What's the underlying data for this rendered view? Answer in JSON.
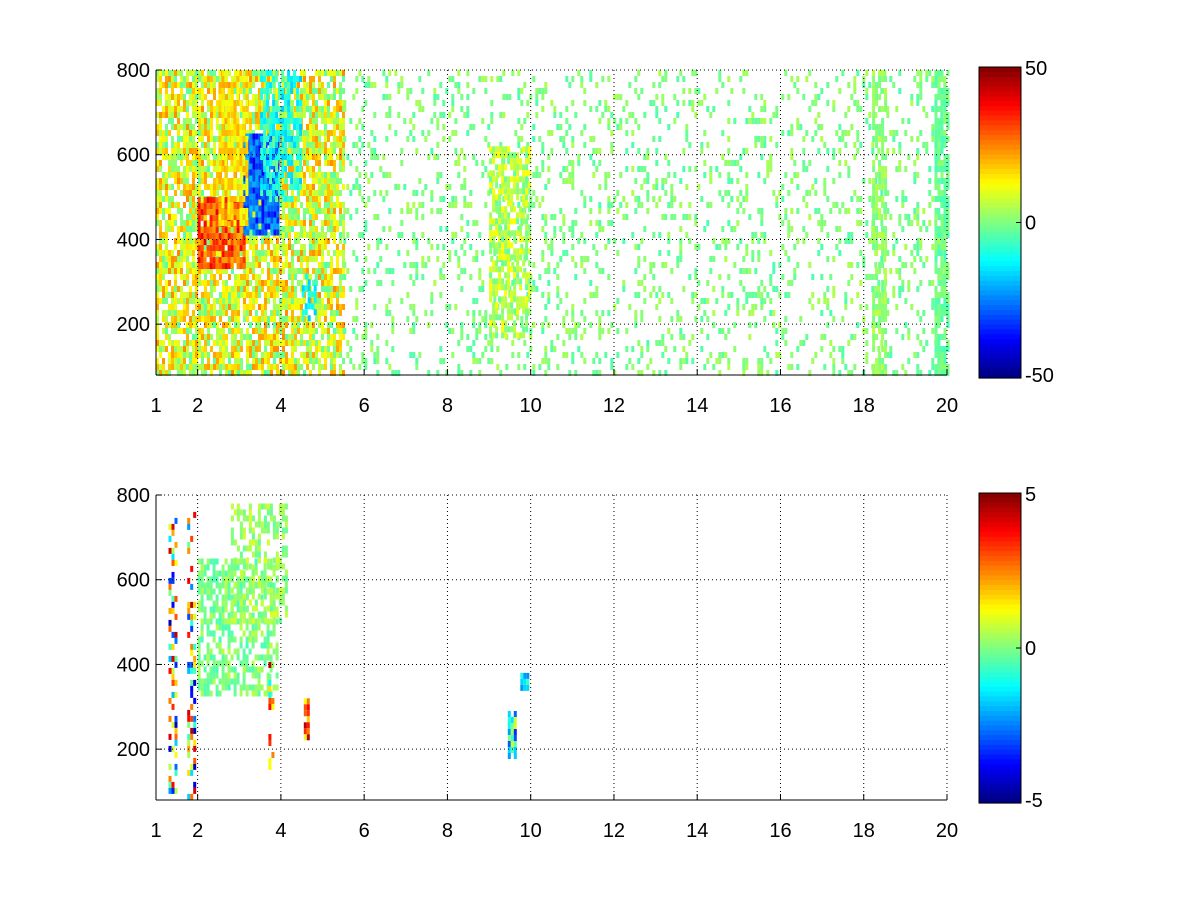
{
  "figure": {
    "background": "#ffffff"
  },
  "chart_data": [
    {
      "type": "heatmap",
      "title": "",
      "xlabel": "",
      "ylabel": "",
      "xlim": [
        1,
        20
      ],
      "ylim": [
        80,
        800
      ],
      "xticks": [
        1,
        2,
        4,
        6,
        8,
        10,
        12,
        14,
        16,
        18,
        20
      ],
      "yticks": [
        200,
        400,
        600,
        800
      ],
      "grid": true,
      "colormap": "jet",
      "clim": [
        -50,
        50
      ],
      "colorbar_ticks": [
        50,
        0,
        -50
      ],
      "nan_color": "#ffffff",
      "regions": [
        {
          "x": [
            1.0,
            5.5
          ],
          "y": [
            80,
            800
          ],
          "value": 10,
          "spread": 14,
          "density": 0.75
        },
        {
          "x": [
            2.0,
            3.1
          ],
          "y": [
            340,
            500
          ],
          "value": 30,
          "spread": 10,
          "density": 0.9
        },
        {
          "x": [
            3.1,
            3.9
          ],
          "y": [
            420,
            650
          ],
          "value": -28,
          "spread": 10,
          "density": 0.9
        },
        {
          "x": [
            2.5,
            3.2
          ],
          "y": [
            440,
            800
          ],
          "value": 15,
          "spread": 6,
          "density": 0.7
        },
        {
          "x": [
            3.5,
            4.5
          ],
          "y": [
            500,
            800
          ],
          "value": -10,
          "spread": 8,
          "density": 0.6
        },
        {
          "x": [
            5.5,
            20.0
          ],
          "y": [
            80,
            800
          ],
          "value": 0,
          "spread": 5,
          "density": 0.18
        },
        {
          "x": [
            9.0,
            10.0
          ],
          "y": [
            180,
            620
          ],
          "value": 5,
          "spread": 8,
          "density": 0.7
        },
        {
          "x": [
            4.5,
            4.8
          ],
          "y": [
            220,
            320
          ],
          "value": -12,
          "spread": 6,
          "density": 0.5
        },
        {
          "x": [
            18.2,
            18.5
          ],
          "y": [
            80,
            800
          ],
          "value": 2,
          "spread": 4,
          "density": 0.6
        },
        {
          "x": [
            19.7,
            20.0
          ],
          "y": [
            80,
            800
          ],
          "value": -2,
          "spread": 4,
          "density": 0.75
        }
      ]
    },
    {
      "type": "heatmap",
      "title": "",
      "xlabel": "",
      "ylabel": "",
      "xlim": [
        1,
        20
      ],
      "ylim": [
        80,
        800
      ],
      "xticks": [
        1,
        2,
        4,
        6,
        8,
        10,
        12,
        14,
        16,
        18,
        20
      ],
      "yticks": [
        200,
        400,
        600,
        800
      ],
      "grid": true,
      "colormap": "jet",
      "clim": [
        -5,
        5
      ],
      "colorbar_ticks": [
        5,
        0,
        -5
      ],
      "nan_color": "#ffffff",
      "regions": [
        {
          "x": [
            2.0,
            3.9
          ],
          "y": [
            330,
            650
          ],
          "value": 0,
          "spread": 0.6,
          "density": 0.6
        },
        {
          "x": [
            2.8,
            4.1
          ],
          "y": [
            500,
            780
          ],
          "value": 0.3,
          "spread": 0.6,
          "density": 0.45
        },
        {
          "x": [
            1.3,
            1.5
          ],
          "y": [
            100,
            760
          ],
          "value": 0,
          "spread": 4.5,
          "density": 0.35
        },
        {
          "x": [
            1.75,
            1.9
          ],
          "y": [
            90,
            760
          ],
          "value": 0,
          "spread": 4.5,
          "density": 0.4
        },
        {
          "x": [
            3.7,
            3.8
          ],
          "y": [
            160,
            420
          ],
          "value": 1.5,
          "spread": 3,
          "density": 0.4
        },
        {
          "x": [
            4.55,
            4.65
          ],
          "y": [
            230,
            320
          ],
          "value": 3,
          "spread": 2,
          "density": 0.8
        },
        {
          "x": [
            9.45,
            9.6
          ],
          "y": [
            190,
            290
          ],
          "value": -1,
          "spread": 2.5,
          "density": 0.85
        },
        {
          "x": [
            9.75,
            9.9
          ],
          "y": [
            350,
            380
          ],
          "value": -1.5,
          "spread": 1,
          "density": 0.9
        }
      ]
    }
  ]
}
